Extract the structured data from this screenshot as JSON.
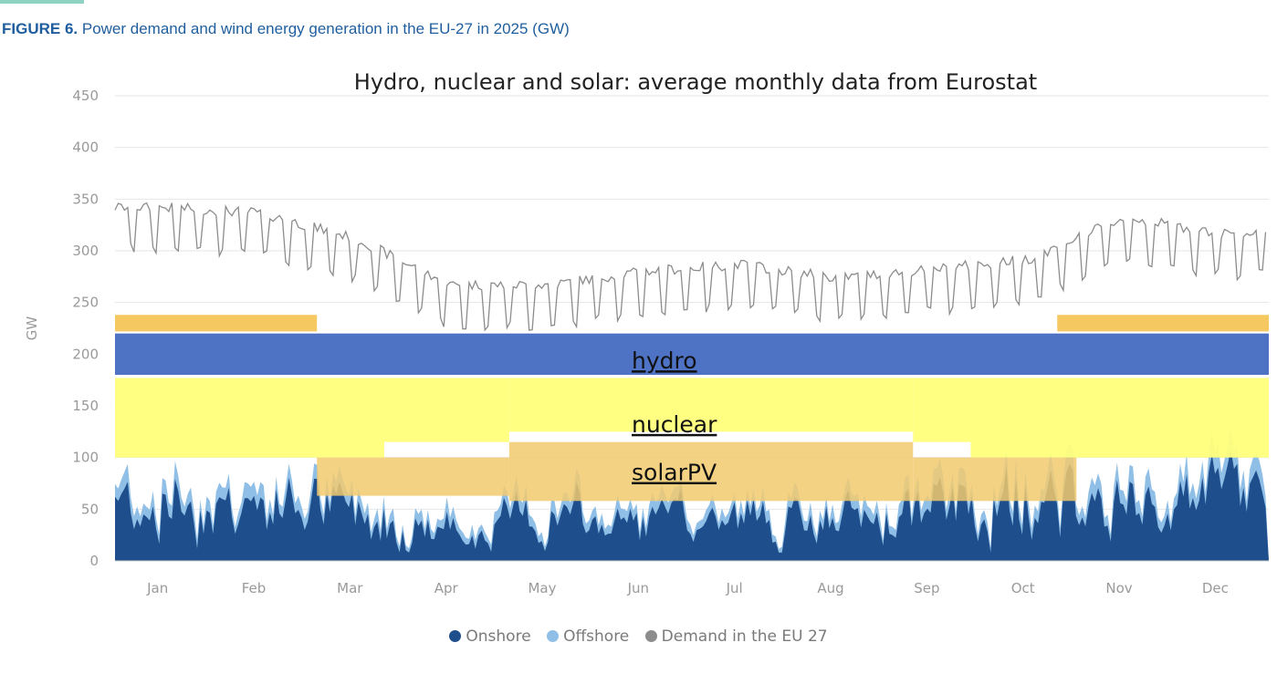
{
  "figure": {
    "label": "FIGURE 6.",
    "title": "Power demand and wind energy generation in the EU-27 in 2025 (GW)"
  },
  "chart_data": {
    "type": "area",
    "annotation": "Hydro, nuclear and solar: average monthly data from Eurostat",
    "ylabel": "GW",
    "xlabel": "",
    "ylim": [
      0,
      450
    ],
    "yticks": [
      0,
      50,
      100,
      150,
      200,
      250,
      300,
      350,
      400,
      450
    ],
    "categories": [
      "Jan",
      "Feb",
      "Mar",
      "Apr",
      "May",
      "Jun",
      "Jul",
      "Aug",
      "Sep",
      "Oct",
      "Nov",
      "Dec"
    ],
    "grid": true,
    "legend_placement": "bottom-center",
    "colors": {
      "onshore": "#1f4e8c",
      "offshore": "#8fbfe6",
      "demand": "#8c8c8c",
      "hydro": "#4f73c4",
      "nuclear": "#ffff7a",
      "solar": "#f2ca6e",
      "solar_top": "#f5c862"
    },
    "series": [
      {
        "name": "Onshore",
        "key": "onshore",
        "values": [
          62,
          55,
          48,
          30,
          42,
          36,
          40,
          35,
          48,
          62,
          48,
          60
        ]
      },
      {
        "name": "Offshore",
        "key": "offshore",
        "values": [
          12,
          10,
          9,
          7,
          8,
          7,
          7,
          7,
          9,
          12,
          10,
          12
        ]
      },
      {
        "name": "Demand in the EU 27",
        "key": "demand",
        "values": [
          330,
          325,
          300,
          255,
          255,
          268,
          275,
          262,
          270,
          280,
          320,
          305
        ]
      }
    ],
    "bands": [
      {
        "label": "hydro",
        "type": "hydro",
        "segments": [
          {
            "month_start": 0,
            "month_end": 12,
            "y0": 180,
            "y1": 220
          }
        ]
      },
      {
        "label": "nuclear",
        "type": "nuclear",
        "segments": [
          {
            "month_start": 0,
            "month_end": 2.8,
            "y0": 100,
            "y1": 177
          },
          {
            "month_start": 2.8,
            "month_end": 4.1,
            "y0": 115,
            "y1": 177
          },
          {
            "month_start": 4.1,
            "month_end": 8.3,
            "y0": 125,
            "y1": 177
          },
          {
            "month_start": 8.3,
            "month_end": 8.9,
            "y0": 115,
            "y1": 177
          },
          {
            "month_start": 8.9,
            "month_end": 12,
            "y0": 100,
            "y1": 177
          }
        ]
      },
      {
        "label": "solarPV",
        "type": "solar",
        "segments": [
          {
            "month_start": 2.1,
            "month_end": 4.1,
            "y0": 63,
            "y1": 100
          },
          {
            "month_start": 4.1,
            "month_end": 8.3,
            "y0": 58,
            "y1": 115
          },
          {
            "month_start": 8.3,
            "month_end": 10.0,
            "y0": 58,
            "y1": 100
          }
        ]
      },
      {
        "label": "",
        "type": "solar_top",
        "segments": [
          {
            "month_start": 0,
            "month_end": 2.1,
            "y0": 222,
            "y1": 238
          },
          {
            "month_start": 9.8,
            "month_end": 12,
            "y0": 222,
            "y1": 238
          }
        ]
      }
    ]
  }
}
